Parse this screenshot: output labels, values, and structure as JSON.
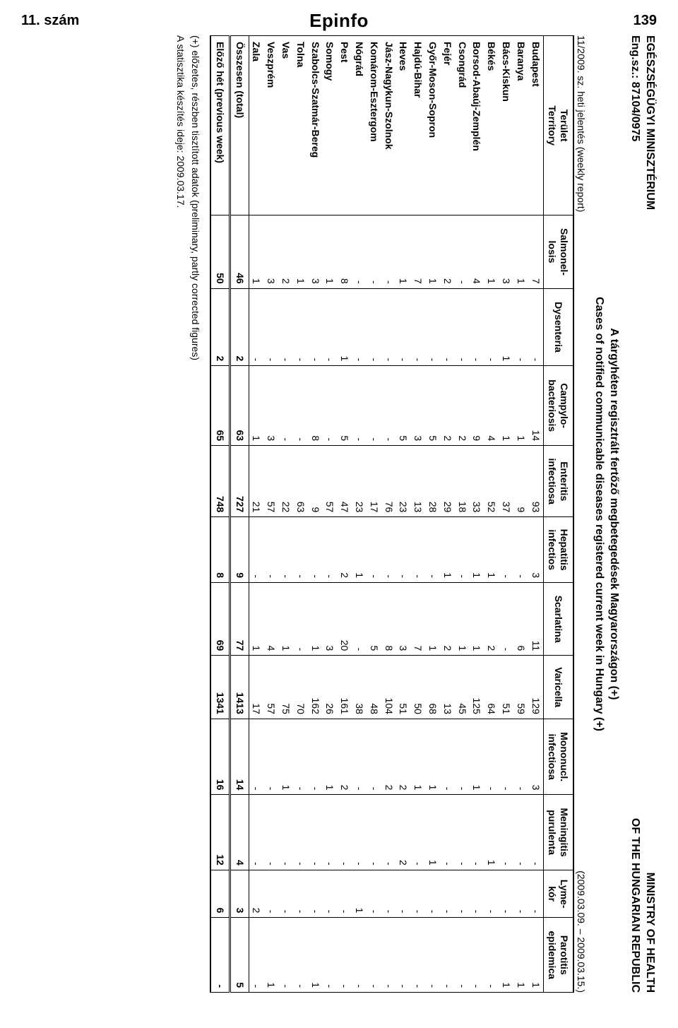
{
  "corner": {
    "issue": "11. szám",
    "brand": "Epinfo",
    "page": "139"
  },
  "header": {
    "left_line1": "EGÉSZSÉGÜGYI MINISZTÉRIUM",
    "left_line2": "Eng.sz.: 87104/0975",
    "right_line1": "MINISTRY OF HEALTH",
    "right_line2": "OF THE HUNGARIAN REPUBLIC",
    "title_line1": "A tárgyhéten regisztrált fertőző megbetegedések Magyarországon (+)",
    "title_line2": "Cases of notified communicable diseases registered current week in Hungary (+)",
    "sub_left": "11/2009. sz. heti jelentés (weekly report)",
    "sub_right": "(2009.03.09. – 2009.03.15.)"
  },
  "columns": [
    "Terület\nTerritory",
    "Salmonel-\nlosis",
    "Dysenteria",
    "Campylo-\nbacteriosis",
    "Enteritis\ninfectiosa",
    "Hepatitis\ninfectios",
    "Scarlatina",
    "Varicella",
    "Mononucl.\ninfectiosa",
    "Meningitis\npurulenta",
    "Lyme-\nkór",
    "Parotitis\nepidemica"
  ],
  "rows": [
    {
      "t": "Budapest",
      "v": [
        "7",
        "-",
        "14",
        "93",
        "3",
        "11",
        "129",
        "3",
        "-",
        "-",
        "1"
      ]
    },
    {
      "t": "Baranya",
      "v": [
        "1",
        "-",
        "1",
        "9",
        "-",
        "6",
        "59",
        "-",
        "-",
        "-",
        "1"
      ]
    },
    {
      "t": "Bács-Kiskun",
      "v": [
        "3",
        "1",
        "1",
        "37",
        "-",
        "-",
        "51",
        "-",
        "-",
        "-",
        "1"
      ]
    },
    {
      "t": "Békés",
      "v": [
        "1",
        "-",
        "4",
        "52",
        "1",
        "2",
        "64",
        "-",
        "1",
        "-",
        "-"
      ]
    },
    {
      "t": "Borsod-Abaúj-Zemplén",
      "v": [
        "4",
        "-",
        "9",
        "33",
        "1",
        "1",
        "125",
        "1",
        "-",
        "-",
        "-"
      ]
    },
    {
      "t": "Csongrád",
      "v": [
        "-",
        "-",
        "2",
        "18",
        "-",
        "1",
        "45",
        "-",
        "-",
        "-",
        "-"
      ]
    },
    {
      "t": "Fejér",
      "v": [
        "2",
        "-",
        "2",
        "29",
        "1",
        "2",
        "13",
        "-",
        "-",
        "-",
        "-"
      ]
    },
    {
      "t": "Győr-Moson-Sopron",
      "v": [
        "1",
        "-",
        "5",
        "28",
        "-",
        "1",
        "68",
        "1",
        "1",
        "-",
        "-"
      ]
    },
    {
      "t": "Hajdú-Bihar",
      "v": [
        "7",
        "-",
        "3",
        "13",
        "-",
        "7",
        "50",
        "1",
        "-",
        "-",
        "-"
      ]
    },
    {
      "t": "Heves",
      "v": [
        "1",
        "-",
        "5",
        "23",
        "-",
        "3",
        "51",
        "2",
        "2",
        "-",
        "-"
      ]
    },
    {
      "t": "Jász-Nagykun-Szolnok",
      "v": [
        "-",
        "-",
        "-",
        "76",
        "-",
        "8",
        "104",
        "2",
        "-",
        "-",
        "-"
      ]
    },
    {
      "t": "Komárom-Esztergom",
      "v": [
        "-",
        "-",
        "-",
        "17",
        "-",
        "5",
        "48",
        "-",
        "-",
        "-",
        "-"
      ]
    },
    {
      "t": "Nógrád",
      "v": [
        "-",
        "-",
        "-",
        "23",
        "1",
        "-",
        "38",
        "-",
        "-",
        "1",
        "-"
      ]
    },
    {
      "t": "Pest",
      "v": [
        "8",
        "1",
        "5",
        "47",
        "2",
        "20",
        "161",
        "2",
        "-",
        "-",
        "-"
      ]
    },
    {
      "t": "Somogy",
      "v": [
        "1",
        "-",
        "-",
        "57",
        "-",
        "3",
        "26",
        "1",
        "-",
        "-",
        "-"
      ]
    },
    {
      "t": "Szabolcs-Szatmár-Bereg",
      "v": [
        "3",
        "-",
        "8",
        "9",
        "-",
        "1",
        "162",
        "-",
        "-",
        "-",
        "1"
      ]
    },
    {
      "t": "Tolna",
      "v": [
        "1",
        "-",
        "-",
        "63",
        "-",
        "-",
        "70",
        "-",
        "-",
        "-",
        "-"
      ]
    },
    {
      "t": "Vas",
      "v": [
        "2",
        "-",
        "-",
        "22",
        "-",
        "1",
        "75",
        "1",
        "-",
        "-",
        "-"
      ]
    },
    {
      "t": "Veszprém",
      "v": [
        "3",
        "-",
        "3",
        "57",
        "-",
        "4",
        "57",
        "-",
        "-",
        "-",
        "1"
      ]
    },
    {
      "t": "Zala",
      "v": [
        "1",
        "-",
        "1",
        "21",
        "-",
        "1",
        "17",
        "-",
        "-",
        "2",
        "-"
      ]
    }
  ],
  "total": {
    "t": "Összesen (total)",
    "v": [
      "46",
      "2",
      "63",
      "727",
      "9",
      "77",
      "1413",
      "14",
      "4",
      "3",
      "5"
    ]
  },
  "prev": {
    "t": "Előző hét (previous week)",
    "v": [
      "50",
      "2",
      "65",
      "748",
      "8",
      "69",
      "1341",
      "16",
      "12",
      "6",
      "-"
    ]
  },
  "footnotes": {
    "line1": "(+) előzetes, részben tisztított adatok (preliminary, partly corrected figures)",
    "line2": "A statisztika készítés ideje: 2009.03.17."
  }
}
